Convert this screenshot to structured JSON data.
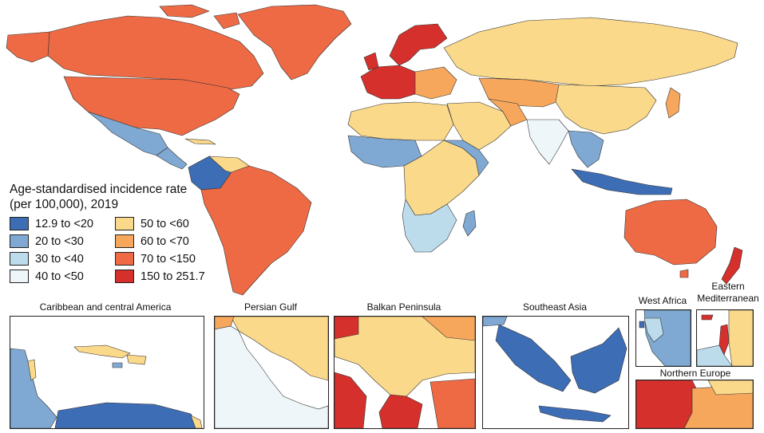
{
  "legend": {
    "title_line1": "Age-standardised incidence rate",
    "title_line2": "(per 100,000), 2019",
    "items": [
      {
        "label": "12.9 to <20",
        "color": "#3d6db5"
      },
      {
        "label": "50 to <60",
        "color": "#fbd98a"
      },
      {
        "label": "20 to <30",
        "color": "#7fa9d3"
      },
      {
        "label": "60 to <70",
        "color": "#f6a75c"
      },
      {
        "label": "30 to <40",
        "color": "#bcdcec"
      },
      {
        "label": "70 to <150",
        "color": "#ee6a45"
      },
      {
        "label": "40 to <50",
        "color": "#eef6fa"
      },
      {
        "label": "150 to 251.7",
        "color": "#d5302c"
      }
    ]
  },
  "insets": {
    "caribbean": "Caribbean and central America",
    "persian_gulf": "Persian Gulf",
    "balkan": "Balkan Peninsula",
    "southeast_asia": "Southeast Asia",
    "west_africa": "West Africa",
    "eastern_med_line1": "Eastern",
    "eastern_med_line2": "Mediterranean",
    "northern_europe": "Northern Europe"
  }
}
